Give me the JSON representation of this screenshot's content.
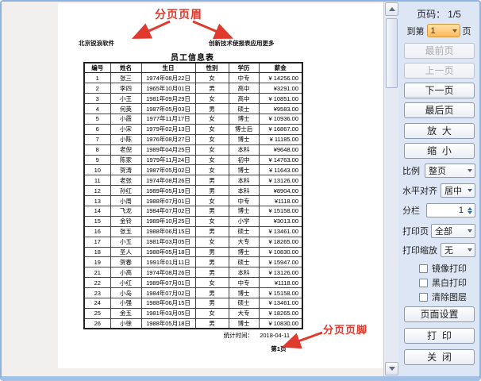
{
  "annotations": {
    "header_label": "分页页眉",
    "footer_label": "分页页脚",
    "color": "#e0392e"
  },
  "page": {
    "header_left": "北京锐浪软件",
    "header_right": "创新技术使报表应用更多",
    "title": "员工信息表",
    "table": {
      "headers": [
        "编号",
        "姓名",
        "生日",
        "性别",
        "学历",
        "薪金"
      ],
      "rows": [
        [
          "1",
          "张三",
          "1974年08月22日",
          "女",
          "中专",
          "¥ 14256.00"
        ],
        [
          "2",
          "李四",
          "1965年10月01日",
          "男",
          "高中",
          "¥3291.00"
        ],
        [
          "3",
          "小王",
          "1981年09月29日",
          "女",
          "高中",
          "¥ 10851.00"
        ],
        [
          "4",
          "何英",
          "1987年05月03日",
          "男",
          "硕士",
          "¥9583.00"
        ],
        [
          "5",
          "小霞",
          "1977年11月17日",
          "女",
          "博士",
          "¥ 10936.00"
        ],
        [
          "6",
          "小宋",
          "1979年02月13日",
          "女",
          "博士后",
          "¥ 16867.00"
        ],
        [
          "7",
          "小陈",
          "1976年08月27日",
          "女",
          "博士",
          "¥ 11185.00"
        ],
        [
          "8",
          "老倪",
          "1989年04月25日",
          "女",
          "本科",
          "¥9648.00"
        ],
        [
          "9",
          "陈家",
          "1979年11月24日",
          "女",
          "初中",
          "¥ 14763.00"
        ],
        [
          "10",
          "贺涛",
          "1987年05月02日",
          "女",
          "博士",
          "¥ 11643.00"
        ],
        [
          "11",
          "老张",
          "1974年08月26日",
          "男",
          "本科",
          "¥ 13126.00"
        ],
        [
          "12",
          "孙红",
          "1989年05月19日",
          "男",
          "本科",
          "¥8904.00"
        ],
        [
          "13",
          "小周",
          "1988年07月01日",
          "女",
          "中专",
          "¥1118.00"
        ],
        [
          "14",
          "飞龙",
          "1984年07月02日",
          "男",
          "博士",
          "¥ 15158.00"
        ],
        [
          "15",
          "金铃",
          "1989年10月25日",
          "女",
          "小学",
          "¥3013.00"
        ],
        [
          "16",
          "张五",
          "1988年06月15日",
          "男",
          "硕士",
          "¥ 13461.00"
        ],
        [
          "17",
          "小五",
          "1981年03月05日",
          "女",
          "大专",
          "¥ 18265.00"
        ],
        [
          "18",
          "圣人",
          "1988年05月18日",
          "男",
          "博士",
          "¥ 10830.00"
        ],
        [
          "19",
          "贺春",
          "1991年01月11日",
          "男",
          "硕士",
          "¥ 15947.00"
        ],
        [
          "21",
          "小高",
          "1974年08月26日",
          "男",
          "本科",
          "¥ 13126.00"
        ],
        [
          "22",
          "小红",
          "1989年07月01日",
          "女",
          "中专",
          "¥1118.00"
        ],
        [
          "23",
          "小岛",
          "1984年07月02日",
          "男",
          "博士",
          "¥ 15158.00"
        ],
        [
          "24",
          "小强",
          "1988年06月15日",
          "男",
          "硕士",
          "¥ 13461.00"
        ],
        [
          "25",
          "金五",
          "1981年03月05日",
          "女",
          "大专",
          "¥ 18265.00"
        ],
        [
          "26",
          "小徐",
          "1988年05月18日",
          "男",
          "博士",
          "¥ 10830.00"
        ]
      ]
    },
    "stats_label": "统计时间：",
    "stats_value": "2018-04-11",
    "page_footer": "第1页"
  },
  "sidebar": {
    "page_info_label": "页码：",
    "page_info_value": "1/5",
    "goto_prefix": "到第",
    "goto_value": "1",
    "goto_suffix": "页",
    "buttons": {
      "first": "最前页",
      "prev": "上一页",
      "next": "下一页",
      "last": "最后页",
      "zoom_in": "放  大",
      "zoom_out": "缩  小",
      "page_setup": "页面设置",
      "print": "打  印",
      "close": "关  闭"
    },
    "controls": {
      "scale_label": "比例",
      "scale_value": "整页",
      "align_label": "水平对齐",
      "align_value": "居中",
      "columns_label": "分栏",
      "columns_value": "1",
      "print_pages_label": "打印页",
      "print_pages_value": "全部",
      "print_scale_label": "打印缩放",
      "print_scale_value": "无"
    },
    "checkboxes": [
      "镜像打印",
      "黑白打印",
      "清除图层"
    ]
  }
}
